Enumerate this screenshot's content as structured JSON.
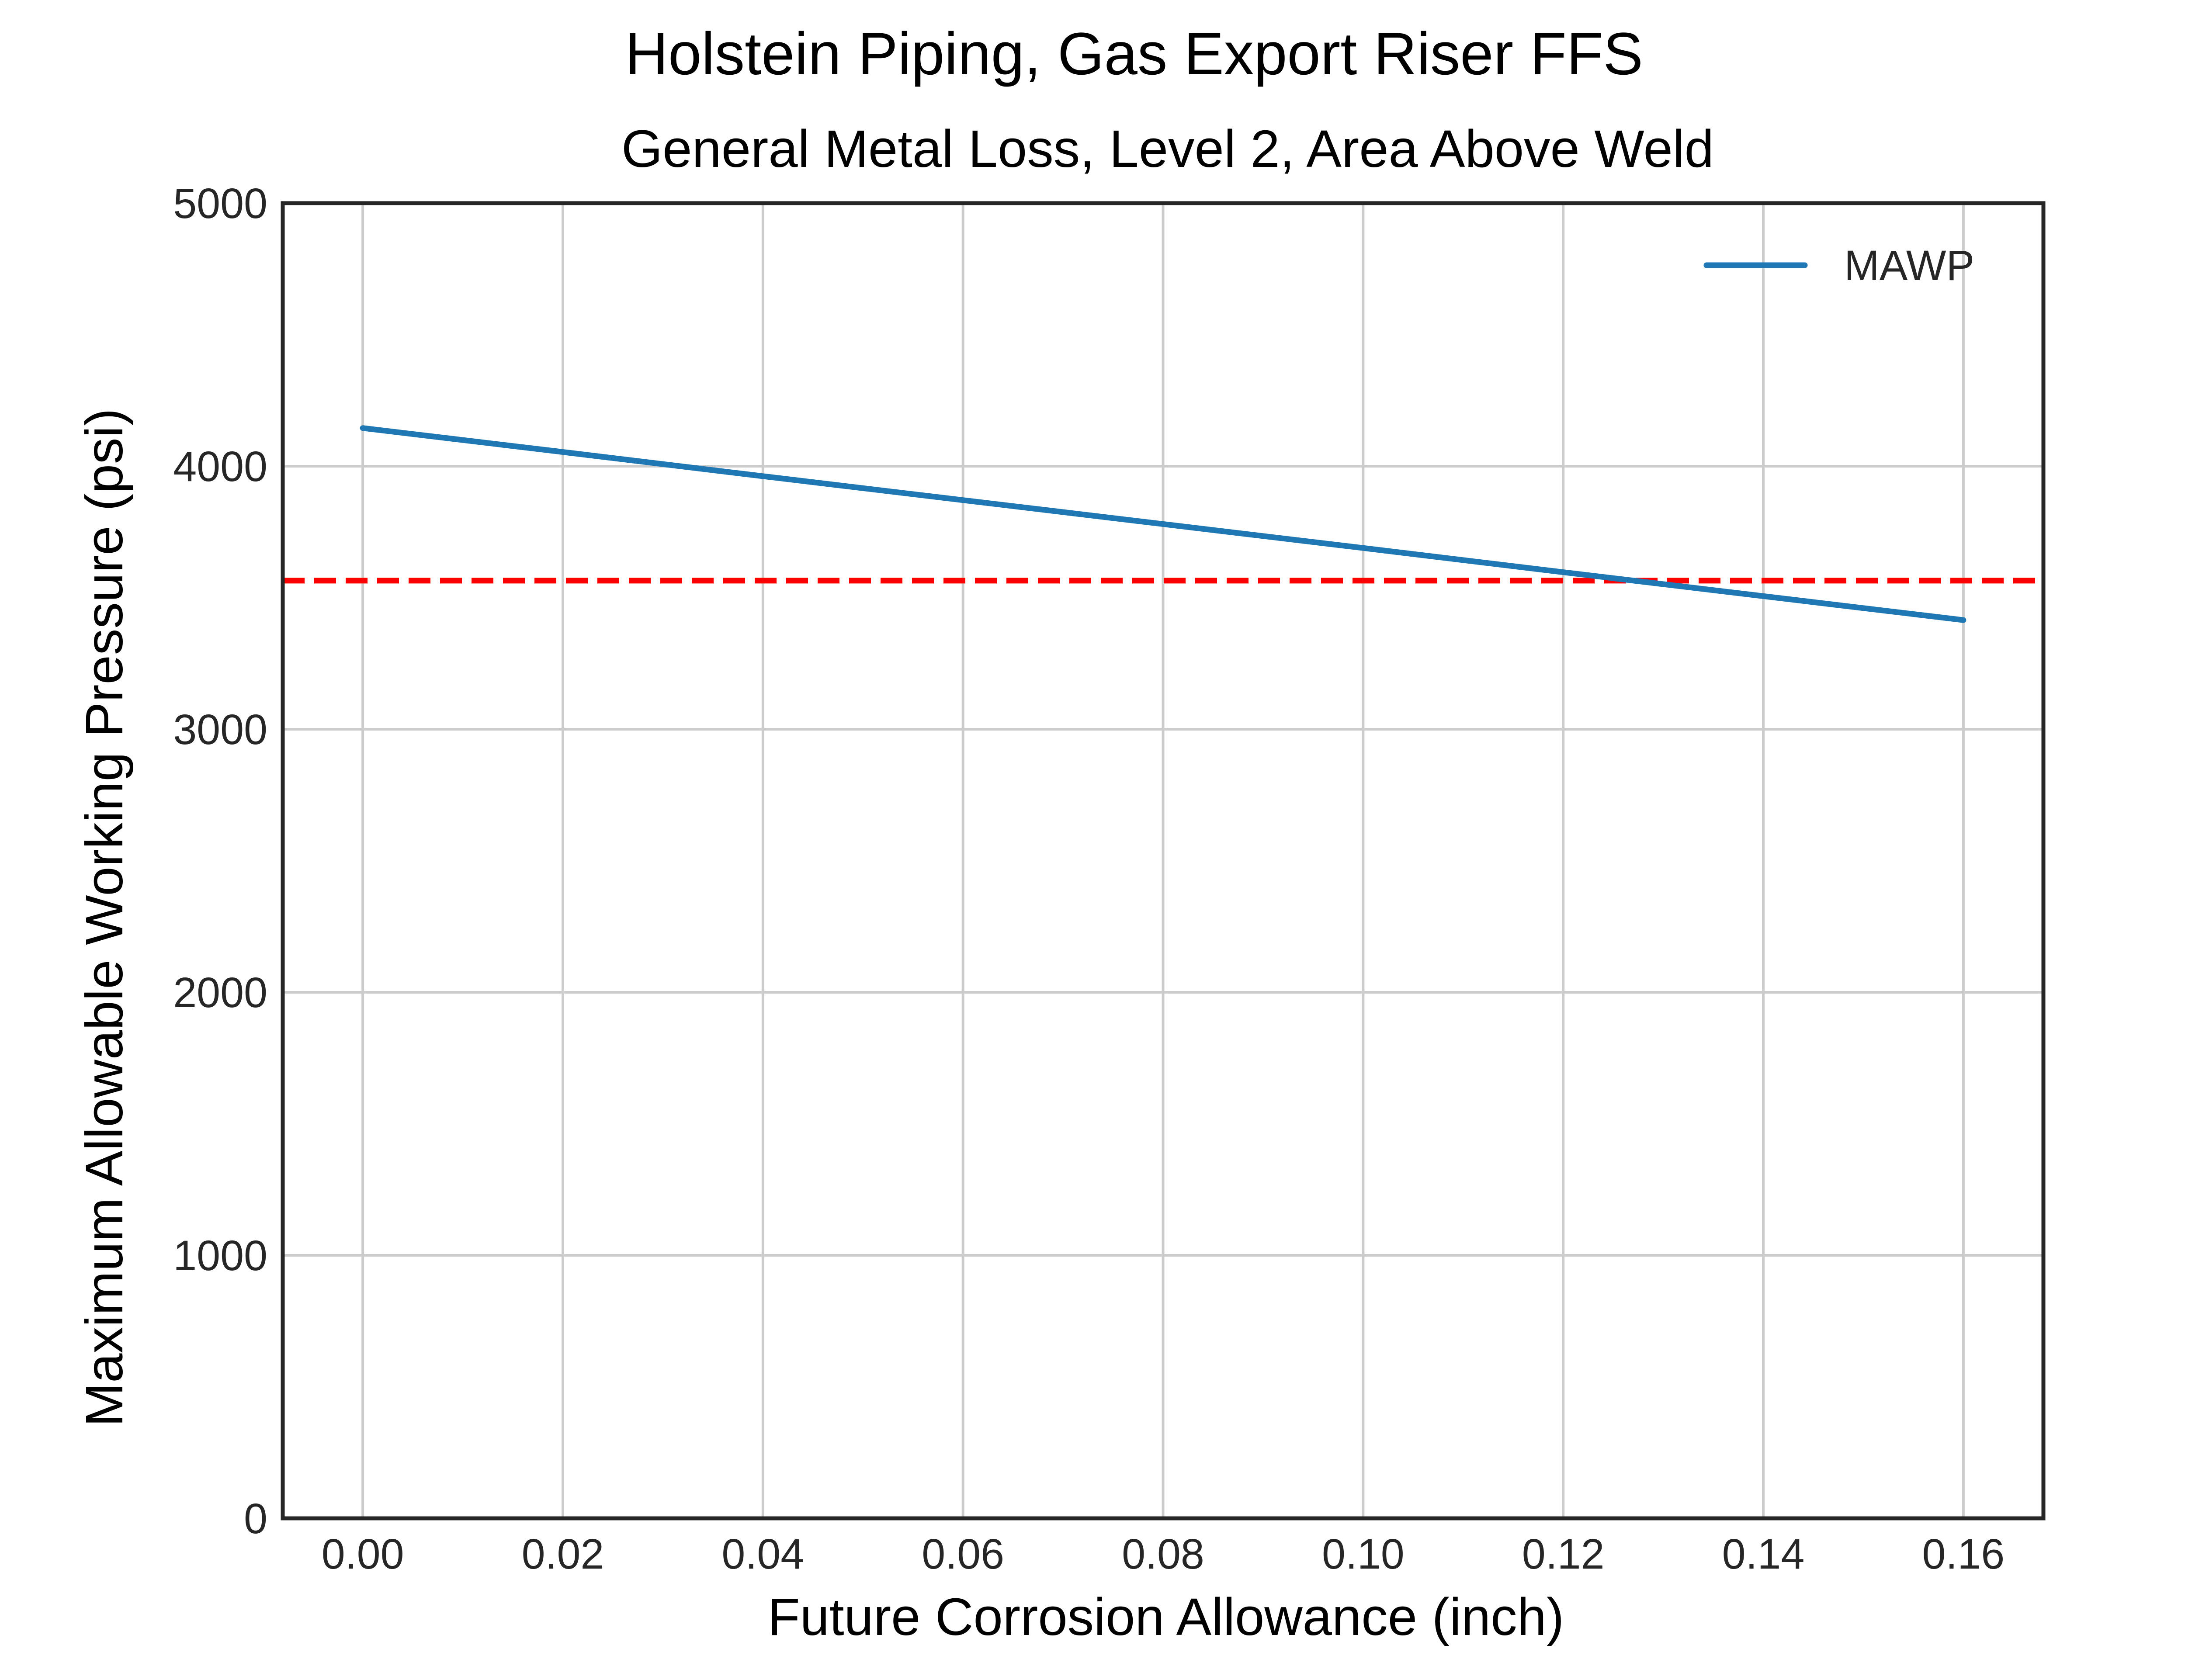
{
  "chart_data": {
    "type": "line",
    "title": "Holstein Piping, Gas Export Riser FFS",
    "subtitle": "General Metal Loss, Level 2, Area Above Weld",
    "xlabel": "Future Corrosion Allowance (inch)",
    "ylabel": "Maximum Allowable Working Pressure (psi)",
    "xlim": [
      -0.008,
      0.168
    ],
    "ylim": [
      0,
      5000
    ],
    "xticks": [
      0.0,
      0.02,
      0.04,
      0.06,
      0.08,
      0.1,
      0.12,
      0.14,
      0.16
    ],
    "xtick_labels": [
      "0.00",
      "0.02",
      "0.04",
      "0.06",
      "0.08",
      "0.10",
      "0.12",
      "0.14",
      "0.16"
    ],
    "yticks": [
      0,
      1000,
      2000,
      3000,
      4000,
      5000
    ],
    "ytick_labels": [
      "0",
      "1000",
      "2000",
      "3000",
      "4000",
      "5000"
    ],
    "grid": true,
    "legend_position": "top-right",
    "series": [
      {
        "name": "MAWP",
        "color": "#1f77b4",
        "style": "solid",
        "x": [
          0.0,
          0.02,
          0.04,
          0.06,
          0.08,
          0.1,
          0.12,
          0.14,
          0.16
        ],
        "y": [
          4145,
          4054,
          3962,
          3871,
          3780,
          3689,
          3597,
          3506,
          3415
        ]
      }
    ],
    "reference_lines": [
      {
        "orientation": "horizontal",
        "y": 3565,
        "color": "#ff0000",
        "style": "dashed"
      }
    ]
  }
}
